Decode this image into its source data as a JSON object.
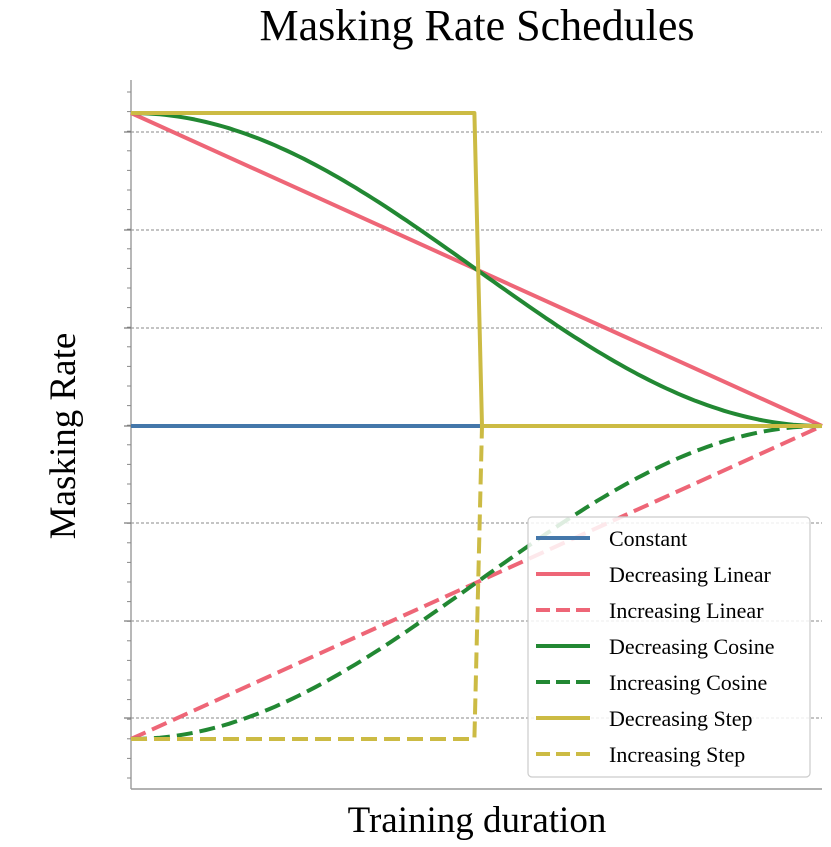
{
  "chart_data": {
    "type": "line",
    "title": "Masking Rate Schedules",
    "xlabel": "Training duration",
    "ylabel": "Masking Rate",
    "xlim": [
      0,
      1
    ],
    "ylim": [
      0.03,
      1.05
    ],
    "grid": "horizontal dashed",
    "legend_position": "lower-right",
    "series": [
      {
        "name": "Constant",
        "style": "solid",
        "color": "#4477AA",
        "x": [
          0,
          1
        ],
        "y": [
          0.5,
          0.5
        ]
      },
      {
        "name": "Decreasing Linear",
        "style": "solid",
        "color": "#EE6677",
        "x": [
          0,
          1
        ],
        "y": [
          1.0,
          0.5
        ]
      },
      {
        "name": "Increasing Linear",
        "style": "dashed",
        "color": "#EE6677",
        "x": [
          0,
          1
        ],
        "y": [
          0.0,
          0.5
        ]
      },
      {
        "name": "Decreasing Cosine",
        "style": "solid",
        "color": "#228833",
        "x": [
          0,
          0.1,
          0.2,
          0.3,
          0.4,
          0.5,
          0.6,
          0.7,
          0.8,
          0.9,
          1.0
        ],
        "y": [
          1.0,
          0.994,
          0.976,
          0.946,
          0.905,
          0.854,
          0.794,
          0.727,
          0.655,
          0.578,
          0.5
        ]
      },
      {
        "name": "Increasing Cosine",
        "style": "dashed",
        "color": "#228833",
        "x": [
          0,
          0.1,
          0.2,
          0.3,
          0.4,
          0.5,
          0.6,
          0.7,
          0.8,
          0.9,
          1.0
        ],
        "y": [
          0.0,
          0.006,
          0.024,
          0.054,
          0.095,
          0.146,
          0.206,
          0.273,
          0.345,
          0.422,
          0.5
        ]
      },
      {
        "name": "Decreasing Step",
        "style": "solid",
        "color": "#CCBB44",
        "x": [
          0,
          0.497,
          0.508,
          1.0
        ],
        "y": [
          1.0,
          1.0,
          0.5,
          0.5
        ]
      },
      {
        "name": "Increasing Step",
        "style": "dashed",
        "color": "#CCBB44",
        "x": [
          0,
          0.497,
          0.508,
          1.0
        ],
        "y": [
          0.0,
          0.0,
          0.5,
          0.5
        ]
      }
    ]
  }
}
